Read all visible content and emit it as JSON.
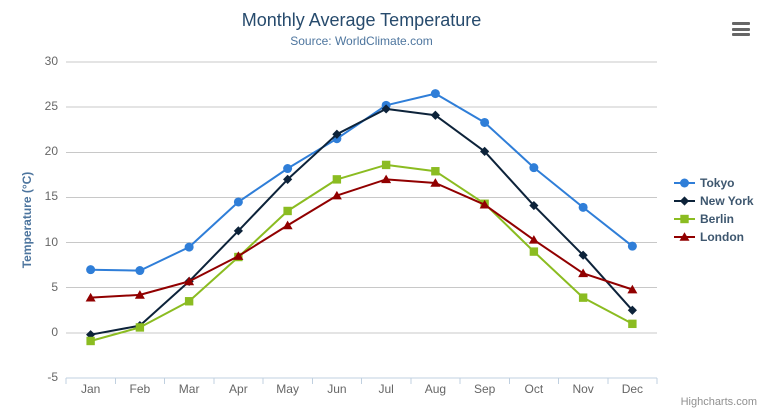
{
  "chart": {
    "credit": "Highcharts.com",
    "export_menu_icon": "hamburger-menu-icon"
  },
  "chart_data": {
    "type": "line",
    "title": "Monthly Average Temperature",
    "subtitle": "Source: WorldClimate.com",
    "xlabel": "",
    "ylabel": "Temperature (°C)",
    "categories": [
      "Jan",
      "Feb",
      "Mar",
      "Apr",
      "May",
      "Jun",
      "Jul",
      "Aug",
      "Sep",
      "Oct",
      "Nov",
      "Dec"
    ],
    "ylim": [
      -5,
      30
    ],
    "yticks": [
      30,
      25,
      20,
      15,
      10,
      5,
      0,
      -5
    ],
    "grid": true,
    "legend_position": "right",
    "series": [
      {
        "name": "Tokyo",
        "color": "#2f7ed8",
        "marker": "circle",
        "values": [
          7.0,
          6.9,
          9.5,
          14.5,
          18.2,
          21.5,
          25.2,
          26.5,
          23.3,
          18.3,
          13.9,
          9.6
        ]
      },
      {
        "name": "New York",
        "color": "#0d233a",
        "marker": "diamond",
        "values": [
          -0.2,
          0.8,
          5.7,
          11.3,
          17.0,
          22.0,
          24.8,
          24.1,
          20.1,
          14.1,
          8.6,
          2.5
        ]
      },
      {
        "name": "Berlin",
        "color": "#8bbc21",
        "marker": "square",
        "values": [
          -0.9,
          0.6,
          3.5,
          8.4,
          13.5,
          17.0,
          18.6,
          17.9,
          14.3,
          9.0,
          3.9,
          1.0
        ]
      },
      {
        "name": "London",
        "color": "#910000",
        "marker": "triangle",
        "values": [
          3.9,
          4.2,
          5.7,
          8.5,
          11.9,
          15.2,
          17.0,
          16.6,
          14.2,
          10.3,
          6.6,
          4.8
        ]
      }
    ],
    "colors": {
      "title": "#274b6d",
      "subtitle": "#4d759e",
      "axis_title": "#4d759e",
      "axis_labels": "#666666",
      "legend_text": "#3E576F",
      "gridline": "#C8C8C8",
      "axis_line": "#C0D0E0",
      "credits": "#909090",
      "export_icon": "#666666"
    }
  }
}
